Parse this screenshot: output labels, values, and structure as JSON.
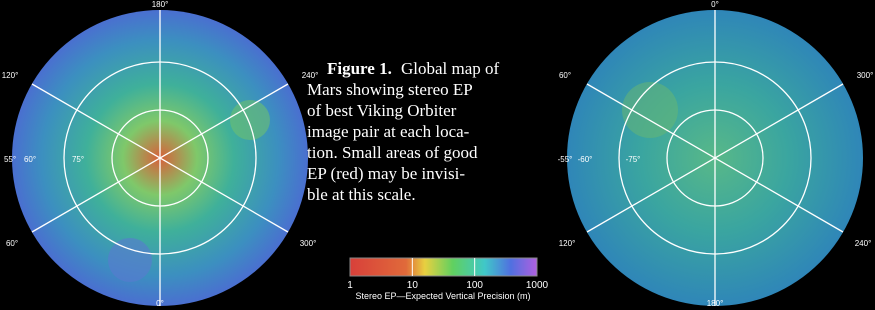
{
  "left_map": {
    "labels": [
      "180°",
      "120°",
      "240°",
      "55°",
      "60°",
      "75°",
      "60°",
      "300°",
      "0°"
    ]
  },
  "right_map": {
    "labels": [
      "0°",
      "60°",
      "300°",
      "-55°",
      "-60°",
      "-75°",
      "120°",
      "240°",
      "180°"
    ]
  },
  "caption": {
    "lead": "Figure 1.",
    "lines": [
      "Global map of",
      "Mars showing stereo EP",
      "of best Viking Orbiter",
      "image pair at each loca-",
      "tion. Small areas of good",
      "EP (red) may be invisi-",
      "ble at this scale."
    ]
  },
  "colorbar": {
    "ticks": [
      1,
      10,
      100,
      1000
    ],
    "label": "Stereo EP—Expected Vertical Precision (m)"
  }
}
